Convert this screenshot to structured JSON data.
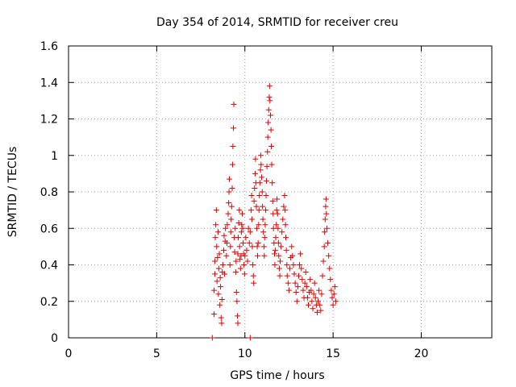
{
  "chart_data": {
    "type": "scatter",
    "title": "Day 354 of 2014, SRMTID for receiver creu",
    "xlabel": "GPS time / hours",
    "ylabel": "SRMTID / TECUs",
    "xlim": [
      0,
      24
    ],
    "ylim": [
      0,
      1.6
    ],
    "x_ticks": [
      0,
      5,
      10,
      15,
      20
    ],
    "x_tick_labels": [
      "0",
      "5",
      "10",
      "15",
      "20"
    ],
    "y_ticks": [
      0,
      0.2,
      0.4,
      0.6,
      0.8,
      1.0,
      1.2,
      1.4,
      1.6
    ],
    "y_tick_labels": [
      "0",
      "0.2",
      "0.4",
      "0.6",
      "0.8",
      "1",
      "1.2",
      "1.4",
      "1.6"
    ],
    "grid": true,
    "marker": "plus",
    "color": "#e00000",
    "series": [
      {
        "name": "SRMTID",
        "points": [
          [
            8.15,
            0.0
          ],
          [
            8.25,
            0.13
          ],
          [
            8.25,
            0.26
          ],
          [
            8.3,
            0.35
          ],
          [
            8.3,
            0.42
          ],
          [
            8.32,
            0.55
          ],
          [
            8.35,
            0.62
          ],
          [
            8.38,
            0.7
          ],
          [
            8.4,
            0.5
          ],
          [
            8.42,
            0.31
          ],
          [
            8.45,
            0.44
          ],
          [
            8.48,
            0.58
          ],
          [
            8.5,
            0.24
          ],
          [
            8.52,
            0.38
          ],
          [
            8.55,
            0.46
          ],
          [
            8.58,
            0.18
          ],
          [
            8.6,
            0.33
          ],
          [
            8.62,
            0.28
          ],
          [
            8.65,
            0.11
          ],
          [
            8.68,
            0.08
          ],
          [
            8.7,
            0.21
          ],
          [
            8.72,
            0.36
          ],
          [
            8.75,
            0.4
          ],
          [
            8.8,
            0.48
          ],
          [
            8.82,
            0.56
          ],
          [
            8.85,
            0.35
          ],
          [
            8.88,
            0.53
          ],
          [
            8.9,
            0.6
          ],
          [
            8.95,
            0.45
          ],
          [
            8.98,
            0.52
          ],
          [
            9.0,
            0.62
          ],
          [
            9.05,
            0.68
          ],
          [
            9.08,
            0.74
          ],
          [
            9.1,
            0.8
          ],
          [
            9.12,
            0.87
          ],
          [
            9.15,
            0.4
          ],
          [
            9.18,
            0.5
          ],
          [
            9.2,
            0.58
          ],
          [
            9.22,
            0.65
          ],
          [
            9.25,
            0.72
          ],
          [
            9.28,
            0.82
          ],
          [
            9.3,
            0.95
          ],
          [
            9.32,
            1.05
          ],
          [
            9.35,
            1.15
          ],
          [
            9.37,
            1.28
          ],
          [
            9.4,
            0.55
          ],
          [
            9.42,
            0.47
          ],
          [
            9.45,
            0.6
          ],
          [
            9.48,
            0.36
          ],
          [
            9.5,
            0.42
          ],
          [
            9.52,
            0.25
          ],
          [
            9.55,
            0.2
          ],
          [
            9.58,
            0.12
          ],
          [
            9.6,
            0.08
          ],
          [
            9.6,
            0.46
          ],
          [
            9.62,
            0.55
          ],
          [
            9.65,
            0.63
          ],
          [
            9.68,
            0.7
          ],
          [
            9.7,
            0.5
          ],
          [
            9.72,
            0.43
          ],
          [
            9.75,
            0.38
          ],
          [
            9.78,
            0.45
          ],
          [
            9.8,
            0.58
          ],
          [
            9.82,
            0.62
          ],
          [
            9.85,
            0.68
          ],
          [
            9.88,
            0.6
          ],
          [
            9.9,
            0.52
          ],
          [
            9.92,
            0.46
          ],
          [
            9.95,
            0.4
          ],
          [
            9.98,
            0.35
          ],
          [
            10.0,
            0.45
          ],
          [
            10.05,
            0.55
          ],
          [
            10.1,
            0.48
          ],
          [
            10.15,
            0.42
          ],
          [
            10.2,
            0.6
          ],
          [
            10.25,
            0.52
          ],
          [
            10.3,
            0.58
          ],
          [
            10.3,
            0.0
          ],
          [
            10.35,
            0.7
          ],
          [
            10.38,
            0.78
          ],
          [
            10.4,
            0.65
          ],
          [
            10.42,
            0.5
          ],
          [
            10.45,
            0.4
          ],
          [
            10.48,
            0.34
          ],
          [
            10.5,
            0.3
          ],
          [
            10.52,
            0.75
          ],
          [
            10.55,
            0.82
          ],
          [
            10.58,
            0.9
          ],
          [
            10.6,
            0.98
          ],
          [
            10.62,
            0.85
          ],
          [
            10.65,
            0.72
          ],
          [
            10.68,
            0.6
          ],
          [
            10.7,
            0.5
          ],
          [
            10.72,
            0.45
          ],
          [
            10.75,
            0.52
          ],
          [
            10.78,
            0.62
          ],
          [
            10.8,
            0.7
          ],
          [
            10.82,
            0.78
          ],
          [
            10.85,
            0.85
          ],
          [
            10.88,
            0.92
          ],
          [
            10.9,
            1.0
          ],
          [
            10.92,
            0.95
          ],
          [
            10.95,
            0.88
          ],
          [
            10.98,
            0.8
          ],
          [
            11.0,
            0.72
          ],
          [
            11.02,
            0.65
          ],
          [
            11.05,
            0.58
          ],
          [
            11.08,
            0.5
          ],
          [
            11.1,
            0.45
          ],
          [
            11.12,
            0.55
          ],
          [
            11.15,
            0.62
          ],
          [
            11.18,
            0.7
          ],
          [
            11.2,
            0.78
          ],
          [
            11.22,
            0.86
          ],
          [
            11.25,
            0.94
          ],
          [
            11.28,
            1.02
          ],
          [
            11.3,
            1.1
          ],
          [
            11.32,
            1.18
          ],
          [
            11.35,
            1.25
          ],
          [
            11.38,
            1.32
          ],
          [
            11.4,
            1.38
          ],
          [
            11.42,
            1.3
          ],
          [
            11.45,
            1.22
          ],
          [
            11.48,
            1.14
          ],
          [
            11.5,
            1.05
          ],
          [
            11.52,
            0.95
          ],
          [
            11.55,
            0.85
          ],
          [
            11.58,
            0.75
          ],
          [
            11.6,
            0.68
          ],
          [
            11.62,
            0.6
          ],
          [
            11.65,
            0.52
          ],
          [
            11.68,
            0.46
          ],
          [
            11.7,
            0.4
          ],
          [
            11.72,
            0.48
          ],
          [
            11.75,
            0.55
          ],
          [
            11.78,
            0.62
          ],
          [
            11.8,
            0.7
          ],
          [
            11.82,
            0.76
          ],
          [
            11.85,
            0.68
          ],
          [
            11.88,
            0.6
          ],
          [
            11.9,
            0.52
          ],
          [
            11.92,
            0.45
          ],
          [
            11.95,
            0.38
          ],
          [
            11.98,
            0.34
          ],
          [
            12.0,
            0.42
          ],
          [
            12.05,
            0.5
          ],
          [
            12.1,
            0.58
          ],
          [
            12.15,
            0.65
          ],
          [
            12.2,
            0.72
          ],
          [
            12.25,
            0.78
          ],
          [
            12.28,
            0.7
          ],
          [
            12.3,
            0.62
          ],
          [
            12.32,
            0.55
          ],
          [
            12.35,
            0.48
          ],
          [
            12.38,
            0.4
          ],
          [
            12.4,
            0.34
          ],
          [
            12.45,
            0.3
          ],
          [
            12.5,
            0.26
          ],
          [
            12.55,
            0.38
          ],
          [
            12.6,
            0.44
          ],
          [
            12.65,
            0.5
          ],
          [
            12.7,
            0.45
          ],
          [
            12.75,
            0.4
          ],
          [
            12.8,
            0.35
          ],
          [
            12.85,
            0.3
          ],
          [
            12.9,
            0.25
          ],
          [
            12.95,
            0.2
          ],
          [
            13.0,
            0.28
          ],
          [
            13.05,
            0.34
          ],
          [
            13.1,
            0.4
          ],
          [
            13.15,
            0.46
          ],
          [
            13.2,
            0.38
          ],
          [
            13.25,
            0.32
          ],
          [
            13.3,
            0.26
          ],
          [
            13.35,
            0.22
          ],
          [
            13.4,
            0.3
          ],
          [
            13.45,
            0.36
          ],
          [
            13.5,
            0.28
          ],
          [
            13.55,
            0.22
          ],
          [
            13.6,
            0.18
          ],
          [
            13.65,
            0.25
          ],
          [
            13.7,
            0.32
          ],
          [
            13.75,
            0.26
          ],
          [
            13.8,
            0.2
          ],
          [
            13.85,
            0.16
          ],
          [
            13.9,
            0.24
          ],
          [
            13.95,
            0.3
          ],
          [
            14.0,
            0.22
          ],
          [
            14.05,
            0.18
          ],
          [
            14.1,
            0.14
          ],
          [
            14.15,
            0.2
          ],
          [
            14.2,
            0.26
          ],
          [
            14.25,
            0.18
          ],
          [
            14.3,
            0.15
          ],
          [
            14.35,
            0.24
          ],
          [
            14.4,
            0.34
          ],
          [
            14.45,
            0.42
          ],
          [
            14.5,
            0.5
          ],
          [
            14.52,
            0.58
          ],
          [
            14.55,
            0.65
          ],
          [
            14.58,
            0.72
          ],
          [
            14.6,
            0.76
          ],
          [
            14.62,
            0.68
          ],
          [
            14.65,
            0.6
          ],
          [
            14.7,
            0.52
          ],
          [
            14.75,
            0.45
          ],
          [
            14.8,
            0.38
          ],
          [
            14.85,
            0.32
          ],
          [
            14.9,
            0.26
          ],
          [
            14.95,
            0.22
          ],
          [
            15.0,
            0.18
          ],
          [
            15.05,
            0.24
          ],
          [
            15.1,
            0.28
          ],
          [
            15.15,
            0.2
          ]
        ]
      }
    ]
  }
}
